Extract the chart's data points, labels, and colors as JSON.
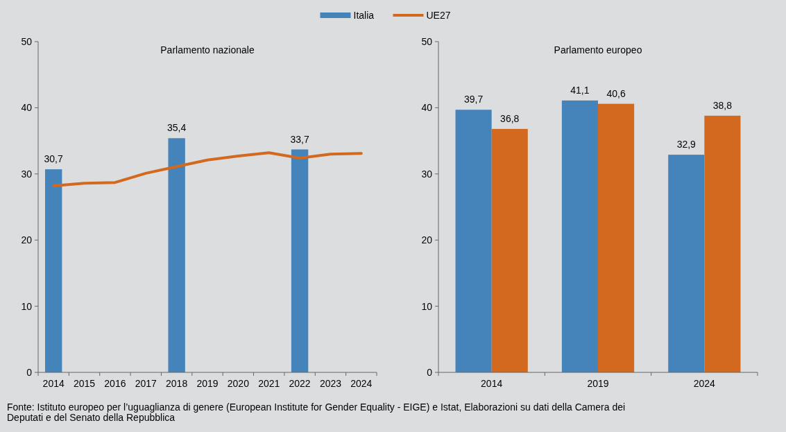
{
  "chart_data": [
    {
      "type": "bar",
      "title": "Parlamento nazionale",
      "categories": [
        "2014",
        "2015",
        "2016",
        "2017",
        "2018",
        "2019",
        "2020",
        "2021",
        "2022",
        "2023",
        "2024"
      ],
      "series": [
        {
          "name": "Italia",
          "color": "#4584bb",
          "values": [
            30.7,
            null,
            null,
            null,
            35.4,
            null,
            null,
            null,
            33.7,
            null,
            null
          ],
          "value_labels": [
            "30,7",
            null,
            null,
            null,
            "35,4",
            null,
            null,
            null,
            "33,7",
            null,
            null
          ]
        },
        {
          "name": "UE27",
          "type": "line",
          "color": "#d2691e",
          "values": [
            28.2,
            28.6,
            28.7,
            30.1,
            31.1,
            32.1,
            32.7,
            33.2,
            32.4,
            33.0,
            33.1
          ]
        }
      ],
      "ylim": [
        0,
        50
      ],
      "yticks": [
        0,
        10,
        20,
        30,
        40,
        50
      ],
      "grid": false,
      "legend": "top",
      "annotations": [
        "Fonte: Istituto europeo per l’uguaglianza di genere (European Institute for Gender Equality - EIGE) e Istat, Elaborazioni su dati della Camera dei Deputati e del Senato della Repubblica"
      ]
    },
    {
      "type": "bar",
      "title": "Parlamento europeo",
      "categories": [
        "2014",
        "2019",
        "2024"
      ],
      "series": [
        {
          "name": "Italia",
          "color": "#4584bb",
          "values": [
            39.7,
            41.1,
            32.9
          ],
          "value_labels": [
            "39,7",
            "41,1",
            "32,9"
          ]
        },
        {
          "name": "UE27",
          "color": "#d2691e",
          "values": [
            36.8,
            40.6,
            38.8
          ],
          "value_labels": [
            "36,8",
            "40,6",
            "38,8"
          ]
        }
      ],
      "ylim": [
        0,
        50
      ],
      "yticks": [
        0,
        10,
        20,
        30,
        40,
        50
      ],
      "grid": false
    }
  ]
}
